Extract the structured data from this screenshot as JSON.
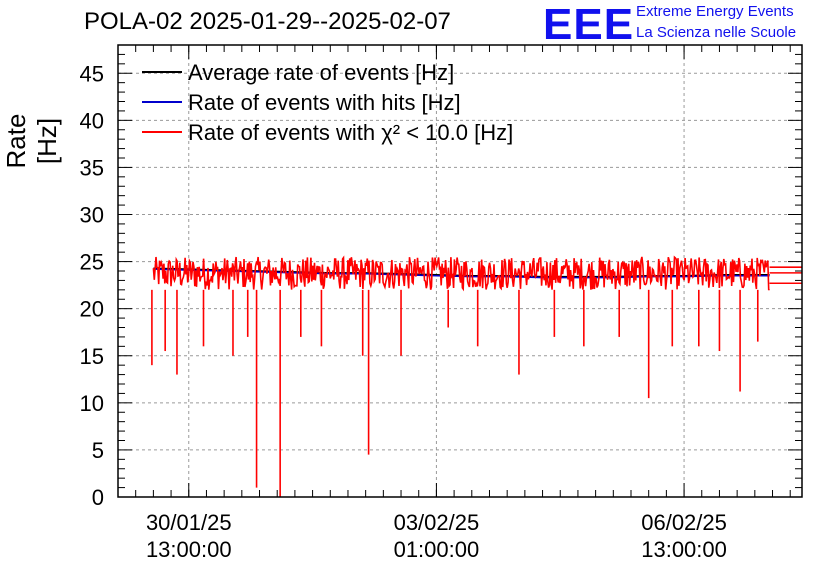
{
  "header": {
    "title": "POLA-02 2025-01-29--2025-02-07",
    "logo_text": "EEE",
    "logo_line1": "Extreme Energy Events",
    "logo_line2": "La Scienza nelle Scuole"
  },
  "colors": {
    "average": "#000000",
    "hits": "#0000cc",
    "chi2": "#ff0000",
    "grid": "#9a9a9a",
    "logo": "#1111ee"
  },
  "chart_data": {
    "type": "line",
    "title": "POLA-02 2025-01-29--2025-02-07",
    "ylabel": "Rate [Hz]",
    "xlabel": "",
    "ylim": [
      0,
      48
    ],
    "yticks": [
      0,
      5,
      10,
      15,
      20,
      25,
      30,
      35,
      40,
      45
    ],
    "xlim": [
      "2025-01-29 13:00:00",
      "2025-02-08 05:00:00"
    ],
    "xticks": [
      {
        "date": "30/01/25",
        "time": "13:00:00",
        "t": "2025-01-30 13:00:00"
      },
      {
        "date": "03/02/25",
        "time": "01:00:00",
        "t": "2025-02-03 01:00:00"
      },
      {
        "date": "06/02/25",
        "time": "13:00:00",
        "t": "2025-02-06 13:00:00"
      }
    ],
    "grid": true,
    "legend_position": "top-left",
    "series": [
      {
        "name": "Average rate of events [Hz]",
        "values": [
          [
            "2025-01-30 01:00",
            24.3
          ],
          [
            "2025-01-30 13:00",
            24.2
          ],
          [
            "2025-01-31 01:00",
            24.1
          ],
          [
            "2025-01-31 13:00",
            24.0
          ],
          [
            "2025-02-01 01:00",
            23.9
          ],
          [
            "2025-02-01 13:00",
            23.8
          ],
          [
            "2025-02-02 01:00",
            23.8
          ],
          [
            "2025-02-02 13:00",
            23.7
          ],
          [
            "2025-02-03 01:00",
            23.6
          ],
          [
            "2025-02-03 13:00",
            23.5
          ],
          [
            "2025-02-04 01:00",
            23.5
          ],
          [
            "2025-02-04 13:00",
            23.4
          ],
          [
            "2025-02-05 01:00",
            23.4
          ],
          [
            "2025-02-05 13:00",
            23.4
          ],
          [
            "2025-02-06 01:00",
            23.5
          ],
          [
            "2025-02-06 13:00",
            23.5
          ],
          [
            "2025-02-07 01:00",
            23.6
          ],
          [
            "2025-02-07 18:00",
            23.6
          ]
        ]
      },
      {
        "name": "Rate of events with hits [Hz]",
        "values": [
          [
            "2025-01-30 01:00",
            24.2
          ],
          [
            "2025-01-30 13:00",
            24.1
          ],
          [
            "2025-01-31 01:00",
            24.0
          ],
          [
            "2025-01-31 13:00",
            23.9
          ],
          [
            "2025-02-01 01:00",
            23.8
          ],
          [
            "2025-02-01 13:00",
            23.7
          ],
          [
            "2025-02-02 01:00",
            23.7
          ],
          [
            "2025-02-02 13:00",
            23.6
          ],
          [
            "2025-02-03 01:00",
            23.5
          ],
          [
            "2025-02-03 13:00",
            23.4
          ],
          [
            "2025-02-04 01:00",
            23.4
          ],
          [
            "2025-02-04 13:00",
            23.3
          ],
          [
            "2025-02-05 01:00",
            23.3
          ],
          [
            "2025-02-05 13:00",
            23.3
          ],
          [
            "2025-02-06 01:00",
            23.4
          ],
          [
            "2025-02-06 13:00",
            23.4
          ],
          [
            "2025-02-07 01:00",
            23.5
          ],
          [
            "2025-02-07 18:00",
            23.5
          ]
        ]
      },
      {
        "name": "Rate of events with χ² < 10.0 [Hz]",
        "band_low": 22.0,
        "band_high": 25.5,
        "values": [
          [
            "2025-01-30 01:00",
            23.8
          ],
          [
            "2025-01-30 13:00",
            23.7
          ],
          [
            "2025-01-31 01:00",
            23.6
          ],
          [
            "2025-01-31 13:00",
            23.5
          ],
          [
            "2025-02-01 01:00",
            23.4
          ],
          [
            "2025-02-01 13:00",
            23.3
          ],
          [
            "2025-02-02 01:00",
            23.3
          ],
          [
            "2025-02-02 13:00",
            23.2
          ],
          [
            "2025-02-03 01:00",
            23.1
          ],
          [
            "2025-02-03 13:00",
            23.0
          ],
          [
            "2025-02-04 01:00",
            23.0
          ],
          [
            "2025-02-04 13:00",
            22.9
          ],
          [
            "2025-02-05 01:00",
            22.9
          ],
          [
            "2025-02-05 13:00",
            22.9
          ],
          [
            "2025-02-06 01:00",
            23.0
          ],
          [
            "2025-02-06 13:00",
            23.0
          ],
          [
            "2025-02-07 01:00",
            23.1
          ],
          [
            "2025-02-07 18:00",
            23.1
          ]
        ],
        "dips": [
          [
            "2025-01-30 00:30",
            14.0
          ],
          [
            "2025-01-30 05:00",
            15.5
          ],
          [
            "2025-01-30 09:00",
            13.0
          ],
          [
            "2025-01-30 18:00",
            16.0
          ],
          [
            "2025-01-31 04:00",
            15.0
          ],
          [
            "2025-01-31 09:00",
            17.0
          ],
          [
            "2025-01-31 12:00",
            1.0
          ],
          [
            "2025-01-31 20:00",
            0.0
          ],
          [
            "2025-02-01 03:00",
            17.0
          ],
          [
            "2025-02-01 10:00",
            16.0
          ],
          [
            "2025-02-02 00:00",
            15.0
          ],
          [
            "2025-02-02 02:00",
            4.5
          ],
          [
            "2025-02-02 13:00",
            15.0
          ],
          [
            "2025-02-03 05:00",
            18.0
          ],
          [
            "2025-02-03 15:00",
            16.0
          ],
          [
            "2025-02-04 05:00",
            13.0
          ],
          [
            "2025-02-04 17:00",
            17.0
          ],
          [
            "2025-02-05 03:00",
            16.0
          ],
          [
            "2025-02-05 15:00",
            17.0
          ],
          [
            "2025-02-06 01:00",
            10.5
          ],
          [
            "2025-02-06 09:00",
            16.0
          ],
          [
            "2025-02-06 18:00",
            16.0
          ],
          [
            "2025-02-07 01:00",
            15.5
          ],
          [
            "2025-02-07 08:00",
            11.2
          ],
          [
            "2025-02-07 14:00",
            16.5
          ]
        ]
      }
    ]
  }
}
